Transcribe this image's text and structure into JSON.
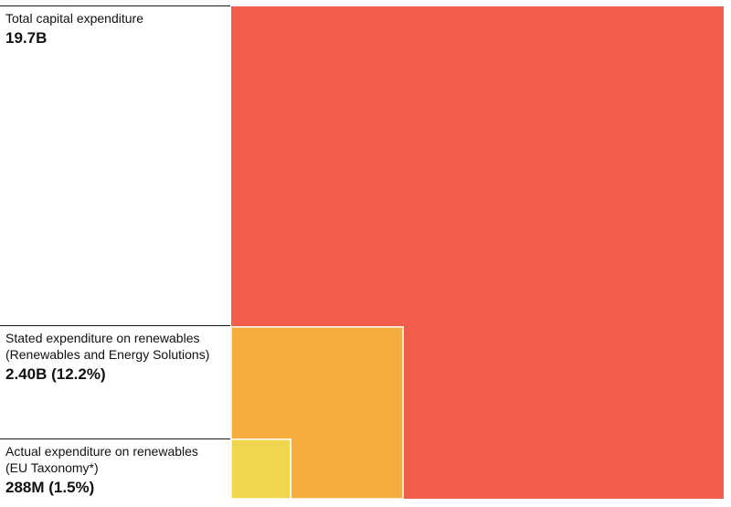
{
  "chart_data": {
    "type": "nested-square",
    "items": [
      {
        "name": "Total capital expenditure",
        "label": "Total capital expenditure",
        "value": 19.7,
        "unit": "B",
        "value_label": "19.7B",
        "share_pct": 100,
        "color": "#f25e4c"
      },
      {
        "name": "Stated expenditure on renewables",
        "label": "Stated expenditure on renewables\n(Renewables and Energy Solutions)",
        "value": 2.4,
        "unit": "B",
        "value_label": "2.40B (12.2%)",
        "share_pct": 12.2,
        "color": "#f5ae3d"
      },
      {
        "name": "Actual expenditure on renewables",
        "label": "Actual expenditure on renewables\n(EU Taxonomy*)",
        "value": 0.288,
        "unit": "B",
        "value_label": "288M (1.5%)",
        "share_pct": 1.5,
        "color": "#f0d64f"
      }
    ]
  }
}
